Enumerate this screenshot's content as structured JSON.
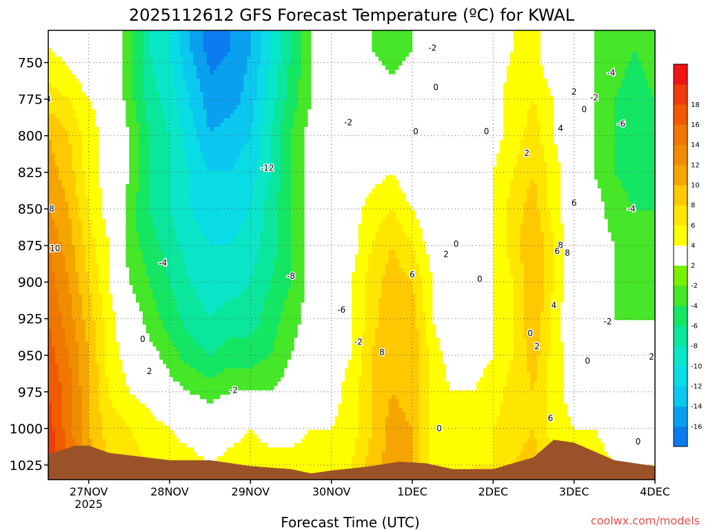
{
  "chart_data": {
    "type": "heatmap",
    "title": "2025112612 GFS Forecast Temperature (ºC) for KWAL",
    "xlabel": "Forecast Time (UTC)",
    "ylabel": "",
    "credit": "coolwx.com/models",
    "x_ticks": [
      {
        "label": "27NOV",
        "sub": "2025",
        "t": 0
      },
      {
        "label": "28NOV",
        "sub": "",
        "t": 24
      },
      {
        "label": "29NOV",
        "sub": "",
        "t": 48
      },
      {
        "label": "30NOV",
        "sub": "",
        "t": 72
      },
      {
        "label": "1DEC",
        "sub": "",
        "t": 96
      },
      {
        "label": "2DEC",
        "sub": "",
        "t": 120
      },
      {
        "label": "3DEC",
        "sub": "",
        "t": 144
      },
      {
        "label": "4DEC",
        "sub": "",
        "t": 168
      }
    ],
    "xlim": [
      -12,
      168
    ],
    "y_ticks": [
      750,
      775,
      800,
      825,
      850,
      875,
      900,
      925,
      950,
      975,
      1000,
      1025
    ],
    "ylim": [
      1035,
      728
    ],
    "grid": true,
    "colorbar": [
      {
        "label": "",
        "color": "#0a7cf0"
      },
      {
        "label": "-16",
        "color": "#0aa0f0"
      },
      {
        "label": "-14",
        "color": "#0ac8f0"
      },
      {
        "label": "-12",
        "color": "#0adce6"
      },
      {
        "label": "-10",
        "color": "#0ae6c8"
      },
      {
        "label": "-8",
        "color": "#0ae69b"
      },
      {
        "label": "-6",
        "color": "#14e664"
      },
      {
        "label": "-4",
        "color": "#46e628"
      },
      {
        "label": "-2",
        "color": "#78f000"
      },
      {
        "label": "2",
        "color": "#ffffff"
      },
      {
        "label": "4",
        "color": "#ffff00"
      },
      {
        "label": "6",
        "color": "#ffe600"
      },
      {
        "label": "8",
        "color": "#ffc800"
      },
      {
        "label": "10",
        "color": "#f5a500"
      },
      {
        "label": "12",
        "color": "#f08c00"
      },
      {
        "label": "14",
        "color": "#f07800"
      },
      {
        "label": "16",
        "color": "#f05a00"
      },
      {
        "label": "18",
        "color": "#f03c0a"
      },
      {
        "label": "",
        "color": "#f01414"
      }
    ],
    "field": {
      "pressure": [
        740,
        775,
        800,
        825,
        850,
        875,
        900,
        925,
        950,
        975,
        1000,
        1025
      ],
      "times": [
        -12,
        -6,
        0,
        6,
        12,
        18,
        24,
        30,
        36,
        42,
        48,
        54,
        60,
        66,
        72,
        78,
        84,
        90,
        96,
        102,
        108,
        114,
        120,
        126,
        132,
        138,
        144,
        150,
        156,
        162,
        168
      ],
      "temperature": [
        [
          2,
          1,
          -1,
          0,
          -3,
          -8,
          -10,
          -14,
          -17,
          -16,
          -14,
          -10,
          -6,
          -2,
          0,
          -2,
          -2,
          -3,
          -2,
          -2,
          0,
          0,
          1,
          2,
          3,
          -1,
          -1,
          -2,
          -3,
          -4,
          -3
        ],
        [
          5,
          4,
          2,
          1,
          -3,
          -7,
          -9,
          -12,
          -15,
          -15,
          -13,
          -9,
          -5,
          -2,
          0,
          -2,
          -1,
          -1,
          -1,
          -1,
          0,
          0,
          1,
          3,
          4,
          2,
          0,
          -2,
          -4,
          -5,
          -4
        ],
        [
          8,
          6,
          3,
          1,
          -2,
          -6,
          -8,
          -11,
          -14,
          -13,
          -12,
          -8,
          -4,
          -1,
          0,
          -1,
          0,
          0,
          0,
          0,
          0,
          0,
          1,
          3,
          5,
          2,
          0,
          -2,
          -4,
          -6,
          -5
        ],
        [
          9,
          7,
          3,
          1,
          -2,
          -6,
          -8,
          -10,
          -12,
          -12,
          -11,
          -8,
          -4,
          -1,
          0,
          0,
          1,
          2,
          0,
          0,
          0,
          1,
          2,
          4,
          6,
          3,
          0,
          -2,
          -4,
          -5,
          -5
        ],
        [
          10,
          8,
          4,
          1,
          -3,
          -6,
          -8,
          -10,
          -11,
          -11,
          -10,
          -7,
          -4,
          -1,
          0,
          1,
          3,
          4,
          2,
          0,
          0,
          1,
          2,
          5,
          7,
          3,
          0,
          -1,
          -3,
          -4,
          -4
        ],
        [
          12,
          9,
          5,
          2,
          -3,
          -5,
          -7,
          -9,
          -10,
          -10,
          -9,
          -7,
          -4,
          -1,
          0,
          1,
          4,
          6,
          4,
          1,
          0,
          0,
          2,
          5,
          8,
          4,
          0,
          -1,
          -2,
          -4,
          -3
        ],
        [
          13,
          10,
          6,
          2,
          -2,
          -4,
          -6,
          -8,
          -9,
          -9,
          -8,
          -6,
          -4,
          -1,
          0,
          2,
          5,
          7,
          6,
          2,
          0,
          0,
          2,
          4,
          8,
          4,
          0,
          -1,
          -2,
          -3,
          -3
        ],
        [
          14,
          11,
          7,
          3,
          0,
          -3,
          -5,
          -7,
          -8,
          -7,
          -7,
          -5,
          -3,
          -1,
          1,
          2,
          5,
          8,
          7,
          2,
          0,
          0,
          2,
          4,
          8,
          3,
          0,
          -1,
          -2,
          -2,
          -2
        ],
        [
          15,
          12,
          8,
          3,
          1,
          -1,
          -3,
          -5,
          -6,
          -5,
          -5,
          -4,
          -2,
          0,
          1,
          2,
          6,
          8,
          8,
          3,
          1,
          1,
          2,
          4,
          7,
          3,
          1,
          0,
          -1,
          -1,
          0
        ],
        [
          16,
          13,
          8,
          4,
          2,
          1,
          -1,
          -2,
          -3,
          -2,
          -2,
          -2,
          -1,
          1,
          1,
          3,
          6,
          8,
          7,
          3,
          2,
          2,
          3,
          5,
          6,
          3,
          1,
          1,
          0,
          0,
          1
        ],
        [
          17,
          13,
          8,
          5,
          4,
          3,
          2,
          1,
          0,
          1,
          2,
          1,
          1,
          2,
          2,
          3,
          6,
          9,
          8,
          3,
          2,
          3,
          4,
          5,
          6,
          3,
          2,
          2,
          1,
          1,
          2
        ],
        [
          18,
          14,
          9,
          6,
          5,
          4,
          3,
          3,
          2,
          3,
          3,
          3,
          3,
          3,
          3,
          4,
          7,
          9,
          8,
          3,
          3,
          4,
          4,
          6,
          7,
          4,
          3,
          3,
          2,
          2,
          2
        ]
      ]
    },
    "contour_labels": [
      {
        "text": "4",
        "t": -12,
        "p": 775
      },
      {
        "text": "8",
        "t": -11,
        "p": 850
      },
      {
        "text": "10",
        "t": -10,
        "p": 877
      },
      {
        "text": "0",
        "t": 16,
        "p": 939
      },
      {
        "text": "2",
        "t": 18,
        "p": 961
      },
      {
        "text": "-4",
        "t": 22,
        "p": 887
      },
      {
        "text": "-12",
        "t": 53,
        "p": 822
      },
      {
        "text": "-8",
        "t": 60,
        "p": 896
      },
      {
        "text": "-2",
        "t": 43,
        "p": 974
      },
      {
        "text": "-6",
        "t": 75,
        "p": 919
      },
      {
        "text": "-2",
        "t": 77,
        "p": 791
      },
      {
        "text": "-2",
        "t": 80,
        "p": 941
      },
      {
        "text": "2",
        "t": 106,
        "p": 881
      },
      {
        "text": "6",
        "t": 96,
        "p": 895
      },
      {
        "text": "8",
        "t": 87,
        "p": 948
      },
      {
        "text": "0",
        "t": 109,
        "p": 874
      },
      {
        "text": "0",
        "t": 116,
        "p": 898
      },
      {
        "text": "0",
        "t": 131,
        "p": 935
      },
      {
        "text": "0",
        "t": 97,
        "p": 797
      },
      {
        "text": "0",
        "t": 103,
        "p": 767
      },
      {
        "text": "-2",
        "t": 102,
        "p": 740
      },
      {
        "text": "0",
        "t": 118,
        "p": 797
      },
      {
        "text": "0",
        "t": 104,
        "p": 1000
      },
      {
        "text": "2",
        "t": 130,
        "p": 812
      },
      {
        "text": "2",
        "t": 133,
        "p": 944
      },
      {
        "text": "4",
        "t": 140,
        "p": 795
      },
      {
        "text": "6",
        "t": 144,
        "p": 846
      },
      {
        "text": "8",
        "t": 140,
        "p": 875
      },
      {
        "text": "8",
        "t": 142,
        "p": 880
      },
      {
        "text": "6",
        "t": 139,
        "p": 879
      },
      {
        "text": "4",
        "t": 138,
        "p": 916
      },
      {
        "text": "6",
        "t": 137,
        "p": 993
      },
      {
        "text": "2",
        "t": 144,
        "p": 770
      },
      {
        "text": "-2",
        "t": 150,
        "p": 774
      },
      {
        "text": "0",
        "t": 147,
        "p": 782
      },
      {
        "text": "-4",
        "t": 155,
        "p": 757
      },
      {
        "text": "-6",
        "t": 158,
        "p": 792
      },
      {
        "text": "-4",
        "t": 161,
        "p": 850
      },
      {
        "text": "-2",
        "t": 154,
        "p": 927
      },
      {
        "text": "0",
        "t": 148,
        "p": 954
      },
      {
        "text": "2",
        "t": 167,
        "p": 951
      },
      {
        "text": "0",
        "t": 163,
        "p": 1009
      }
    ],
    "terrain_surface": [
      {
        "t": -12,
        "p": 1018
      },
      {
        "t": -4,
        "p": 1012
      },
      {
        "t": 0,
        "p": 1012
      },
      {
        "t": 6,
        "p": 1017
      },
      {
        "t": 24,
        "p": 1022
      },
      {
        "t": 36,
        "p": 1022
      },
      {
        "t": 48,
        "p": 1026
      },
      {
        "t": 60,
        "p": 1028
      },
      {
        "t": 66,
        "p": 1031
      },
      {
        "t": 72,
        "p": 1029
      },
      {
        "t": 84,
        "p": 1026
      },
      {
        "t": 92,
        "p": 1023
      },
      {
        "t": 100,
        "p": 1024
      },
      {
        "t": 108,
        "p": 1028
      },
      {
        "t": 120,
        "p": 1028
      },
      {
        "t": 132,
        "p": 1020
      },
      {
        "t": 138,
        "p": 1008
      },
      {
        "t": 144,
        "p": 1010
      },
      {
        "t": 150,
        "p": 1016
      },
      {
        "t": 156,
        "p": 1022
      },
      {
        "t": 162,
        "p": 1024
      },
      {
        "t": 168,
        "p": 1026
      }
    ],
    "colors": {
      "terrain": "#9c5228",
      "zero_contour": "#c81e78",
      "grid": "#555555"
    }
  }
}
